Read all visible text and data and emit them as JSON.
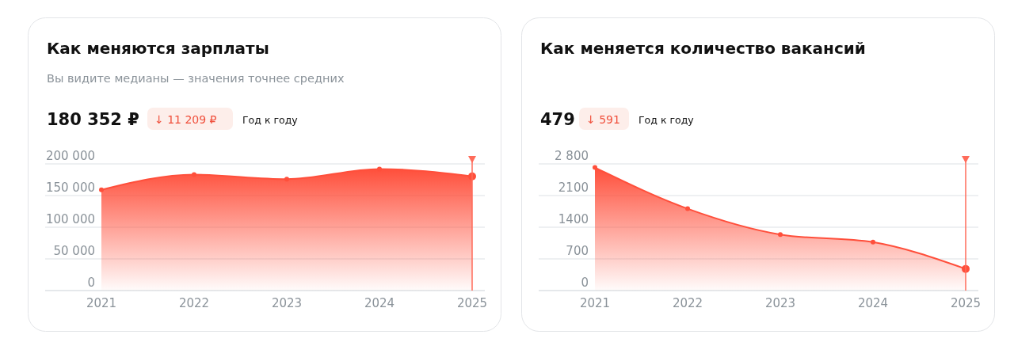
{
  "chart_data": [
    {
      "type": "area",
      "title": "Как меняются зарплаты",
      "subtitle": "Вы видите медианы — значения точнее средних",
      "annotations": [
        "180 352 ₽",
        "↓ 11 209 ₽",
        "Год к году"
      ],
      "categories": [
        "2021",
        "2022",
        "2023",
        "2024",
        "2025"
      ],
      "series": [
        {
          "color": "#ff4f3b",
          "values": [
            159000,
            183000,
            176000,
            192000,
            180352
          ]
        }
      ],
      "ylim": [
        0,
        200000
      ],
      "yticks": [
        {
          "value": 0,
          "label": "0"
        },
        {
          "value": 50000,
          "label": "50 000"
        },
        {
          "value": 100000,
          "label": "100 000"
        },
        {
          "value": 150000,
          "label": "150 000"
        },
        {
          "value": 200000,
          "label": "200 000"
        }
      ],
      "grid": "y",
      "marker": "circle",
      "ref_lines": [
        {
          "axis": "x",
          "value": "2025",
          "color": "#ff6b5a"
        }
      ]
    },
    {
      "type": "area",
      "title": "Как меняется количество вакансий",
      "annotations": [
        "479",
        "↓ 591",
        "Год к году"
      ],
      "categories": [
        "2021",
        "2022",
        "2023",
        "2024",
        "2025"
      ],
      "series": [
        {
          "color": "#ff4f3b",
          "values": [
            2720,
            1810,
            1240,
            1070,
            479
          ]
        }
      ],
      "ylim": [
        0,
        2800
      ],
      "yticks": [
        {
          "value": 0,
          "label": "0"
        },
        {
          "value": 700,
          "label": "700"
        },
        {
          "value": 1400,
          "label": "1400"
        },
        {
          "value": 2100,
          "label": "2100"
        },
        {
          "value": 2800,
          "label": "2 800"
        }
      ],
      "grid": "y",
      "marker": "circle",
      "ref_lines": [
        {
          "axis": "x",
          "value": "2025",
          "color": "#ff6b5a"
        }
      ]
    }
  ]
}
